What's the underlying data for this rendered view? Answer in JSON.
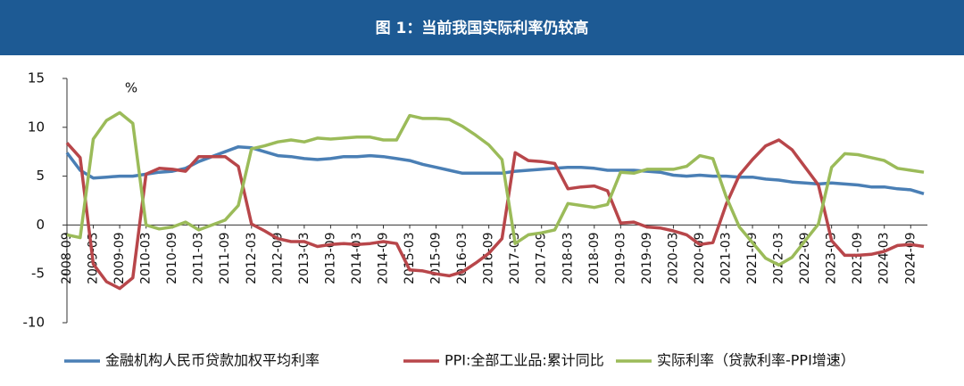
{
  "chart_data": {
    "type": "line",
    "title": "图 1：当前我国实际利率仍较高",
    "y_label": "%",
    "categories": [
      "2008-09",
      null,
      "2009-03",
      null,
      "2009-09",
      null,
      "2010-03",
      null,
      "2010-09",
      null,
      "2011-03",
      null,
      "2011-09",
      null,
      "2012-03",
      null,
      "2012-09",
      null,
      "2013-03",
      null,
      "2013-09",
      null,
      "2014-03",
      null,
      "2014-09",
      null,
      "2015-03",
      null,
      "2015-09",
      null,
      "2016-03",
      null,
      "2016-09",
      null,
      "2017-03",
      null,
      "2017-09",
      null,
      "2018-03",
      null,
      "2018-09",
      null,
      "2019-03",
      null,
      "2019-09",
      null,
      "2020-03",
      null,
      "2020-09",
      null,
      "2021-03",
      null,
      "2021-09",
      null,
      "2022-03",
      null,
      "2022-09",
      null,
      "2023-03",
      null,
      "2023-09",
      null,
      "2024-03",
      null,
      "2024-09",
      null
    ],
    "ylim": [
      -10,
      15
    ],
    "yticks": [
      -10,
      -5,
      0,
      5,
      10,
      15
    ],
    "series": [
      {
        "name": "金融机构人民币贷款加权平均利率",
        "color": "#4a7fb5",
        "values": [
          7.4,
          5.6,
          4.8,
          4.9,
          5.0,
          5.0,
          5.2,
          5.4,
          5.5,
          5.8,
          6.5,
          7.0,
          7.5,
          8.0,
          7.9,
          7.5,
          7.1,
          7.0,
          6.8,
          6.7,
          6.8,
          7.0,
          7.0,
          7.1,
          7.0,
          6.8,
          6.6,
          6.2,
          5.9,
          5.6,
          5.3,
          5.3,
          5.3,
          5.3,
          5.5,
          5.6,
          5.7,
          5.8,
          5.9,
          5.9,
          5.8,
          5.6,
          5.6,
          5.6,
          5.5,
          5.4,
          5.1,
          5.0,
          5.1,
          5.0,
          5.0,
          4.9,
          4.9,
          4.7,
          4.6,
          4.4,
          4.3,
          4.2,
          4.3,
          4.2,
          4.1,
          3.9,
          3.9,
          3.7,
          3.6,
          3.2
        ]
      },
      {
        "name": "PPI:全部工业品:累计同比",
        "color": "#b8464a",
        "values": [
          8.4,
          6.9,
          -4.0,
          -5.8,
          -6.5,
          -5.4,
          5.2,
          5.8,
          5.7,
          5.5,
          7.0,
          7.0,
          7.0,
          6.0,
          0.1,
          -0.6,
          -1.4,
          -1.7,
          -1.7,
          -2.2,
          -2.0,
          -1.9,
          -2.0,
          -1.9,
          -1.7,
          -1.9,
          -4.6,
          -4.7,
          -5.0,
          -5.2,
          -4.8,
          -3.9,
          -2.9,
          -1.4,
          7.4,
          6.6,
          6.5,
          6.3,
          3.7,
          3.9,
          4.0,
          3.5,
          0.2,
          0.3,
          -0.2,
          -0.3,
          -0.6,
          -1.0,
          -2.0,
          -1.8,
          2.1,
          5.1,
          6.7,
          8.1,
          8.7,
          7.7,
          5.9,
          4.1,
          -1.6,
          -3.1,
          -3.1,
          -3.0,
          -2.7,
          -2.1,
          -2.0,
          -2.2
        ]
      },
      {
        "name": "实际利率（贷款利率-PPI增速）",
        "color": "#9bbb59",
        "values": [
          -1.0,
          -1.3,
          8.8,
          10.7,
          11.5,
          10.4,
          0.0,
          -0.4,
          -0.2,
          0.3,
          -0.5,
          0.0,
          0.5,
          2.0,
          7.8,
          8.1,
          8.5,
          8.7,
          8.5,
          8.9,
          8.8,
          8.9,
          9.0,
          9.0,
          8.7,
          8.7,
          11.2,
          10.9,
          10.9,
          10.8,
          10.1,
          9.2,
          8.2,
          6.7,
          -1.9,
          -1.0,
          -0.8,
          -0.5,
          2.2,
          2.0,
          1.8,
          2.1,
          5.4,
          5.3,
          5.7,
          5.7,
          5.7,
          6.0,
          7.1,
          6.8,
          2.9,
          -0.2,
          -1.8,
          -3.4,
          -4.1,
          -3.3,
          -1.6,
          0.1,
          5.9,
          7.3,
          7.2,
          6.9,
          6.6,
          5.8,
          5.6,
          5.4
        ]
      }
    ]
  }
}
